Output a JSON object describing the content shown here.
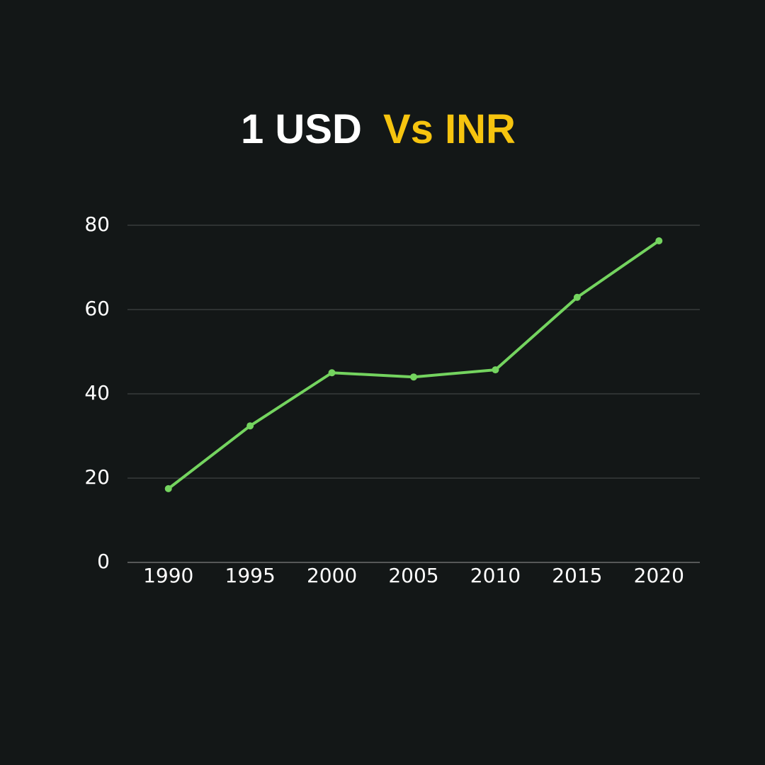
{
  "chart_data": {
    "type": "line",
    "title": [
      {
        "text": "1 USD",
        "color": "#ffffff"
      },
      {
        "text": "Vs INR",
        "color": "#f6c40f"
      }
    ],
    "categories": [
      "1990",
      "1995",
      "2000",
      "2005",
      "2010",
      "2015",
      "2020"
    ],
    "values": [
      17.5,
      32.4,
      45.0,
      44.0,
      45.7,
      62.9,
      76.3
    ],
    "color": "#74d45f",
    "ylim": [
      0,
      80
    ],
    "yticks": [
      0,
      20,
      40,
      60,
      80
    ],
    "grid": true
  }
}
